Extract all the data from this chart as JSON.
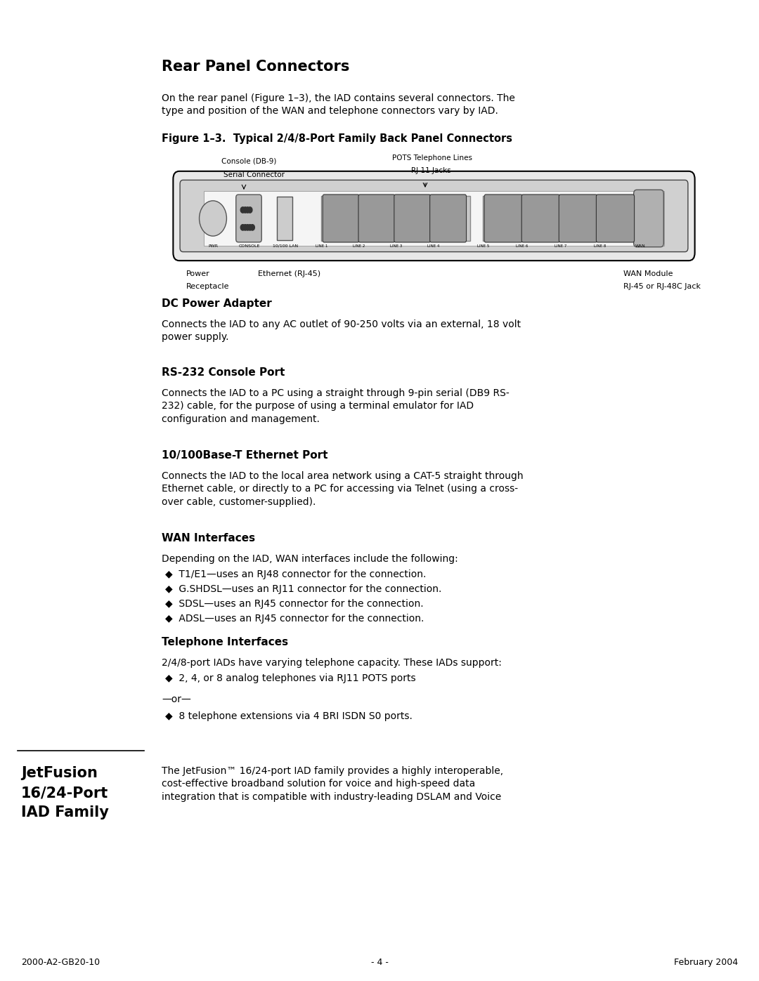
{
  "page_width": 10.8,
  "page_height": 13.97,
  "bg_color": "#ffffff",
  "title_main": "Rear Panel Connectors",
  "intro_text": "On the rear panel (Figure 1–3), the IAD contains several connectors. The\ntype and position of the WAN and telephone connectors vary by IAD.",
  "figure_title": "Figure 1–3.  Typical 2/4/8-Port Family Back Panel Connectors",
  "section1_head": "DC Power Adapter",
  "section1_body": "Connects the IAD to any AC outlet of 90-250 volts via an external, 18 volt\npower supply.",
  "section2_head": "RS-232 Console Port",
  "section2_body": "Connects the IAD to a PC using a straight through 9-pin serial (DB9 RS-\n232) cable, for the purpose of using a terminal emulator for IAD\nconfiguration and management.",
  "section3_head": "10/100Base-T Ethernet Port",
  "section3_body": "Connects the IAD to the local area network using a CAT-5 straight through\nEthernet cable, or directly to a PC for accessing via Telnet (using a cross-\nover cable, customer-supplied).",
  "section4_head": "WAN Interfaces",
  "section4_intro": "Depending on the IAD, WAN interfaces include the following:",
  "section4_bullets": [
    "T1/E1—uses an RJ48 connector for the connection.",
    "G.SHDSL—uses an RJ11 connector for the connection.",
    "SDSL—uses an RJ45 connector for the connection.",
    "ADSL—uses an RJ45 connector for the connection."
  ],
  "section5_head": "Telephone Interfaces",
  "section5_intro": "2/4/8-port IADs have varying telephone capacity. These IADs support:",
  "section5_bullet1": "2, 4, or 8 analog telephones via RJ11 POTS ports",
  "section5_or": "—or—",
  "section5_bullet2": "8 telephone extensions via 4 BRI ISDN S0 ports.",
  "sidebar_title": "JetFusion\n16/24-Port\nIAD Family",
  "sidebar_text": "The JetFusion™ 16/24-port IAD family provides a highly interoperable,\ncost-effective broadband solution for voice and high-speed data\nintegration that is compatible with industry-leading DSLAM and Voice",
  "footer_left": "2000-A2-GB20-10",
  "footer_center": "- 4 -",
  "footer_right": "February 2004"
}
